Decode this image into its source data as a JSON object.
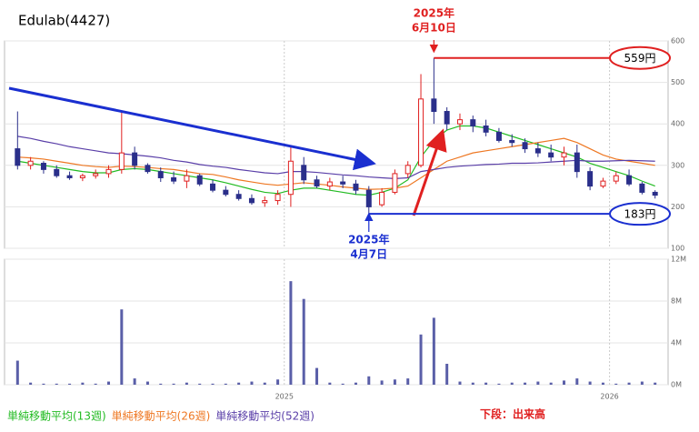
{
  "chart_data": {
    "type": "candlestick",
    "title": "Edulab(4427)",
    "x": [
      2024.18,
      2024.22,
      2024.26,
      2024.3,
      2024.34,
      2024.38,
      2024.42,
      2024.46,
      2024.5,
      2024.54,
      2024.58,
      2024.62,
      2024.66,
      2024.7,
      2024.74,
      2024.78,
      2024.82,
      2024.86,
      2024.9,
      2024.94,
      2024.98,
      2025.02,
      2025.06,
      2025.1,
      2025.14,
      2025.18,
      2025.22,
      2025.26,
      2025.3,
      2025.34,
      2025.38,
      2025.42,
      2025.46,
      2025.5,
      2025.54,
      2025.58,
      2025.62,
      2025.66,
      2025.7,
      2025.74,
      2025.78,
      2025.82,
      2025.86,
      2025.9,
      2025.94,
      2025.98,
      2026.02,
      2026.06,
      2026.1,
      2026.14
    ],
    "open": [
      340,
      300,
      305,
      290,
      275,
      270,
      275,
      280,
      290,
      330,
      300,
      285,
      270,
      262,
      275,
      255,
      240,
      230,
      220,
      210,
      215,
      230,
      300,
      265,
      250,
      260,
      255,
      240,
      205,
      235,
      280,
      300,
      460,
      430,
      400,
      410,
      395,
      380,
      360,
      355,
      340,
      330,
      320,
      330,
      285,
      250,
      262,
      275,
      255,
      235
    ],
    "high": [
      430,
      320,
      310,
      300,
      285,
      280,
      290,
      300,
      430,
      345,
      305,
      295,
      285,
      290,
      280,
      265,
      250,
      240,
      230,
      225,
      240,
      345,
      320,
      275,
      270,
      275,
      265,
      250,
      245,
      290,
      310,
      520,
      559,
      440,
      425,
      420,
      410,
      390,
      375,
      365,
      355,
      350,
      345,
      350,
      295,
      270,
      285,
      290,
      260,
      240
    ],
    "low": [
      290,
      290,
      280,
      270,
      265,
      262,
      268,
      270,
      280,
      290,
      280,
      260,
      255,
      245,
      250,
      235,
      225,
      215,
      205,
      200,
      205,
      200,
      255,
      245,
      240,
      245,
      230,
      183,
      200,
      230,
      270,
      295,
      400,
      385,
      385,
      380,
      370,
      355,
      345,
      330,
      320,
      310,
      300,
      270,
      240,
      245,
      255,
      250,
      230,
      220
    ],
    "close": [
      300,
      310,
      290,
      275,
      270,
      275,
      280,
      290,
      330,
      300,
      285,
      270,
      262,
      275,
      255,
      240,
      230,
      220,
      210,
      215,
      230,
      310,
      265,
      250,
      260,
      255,
      240,
      200,
      235,
      280,
      300,
      460,
      430,
      400,
      410,
      395,
      380,
      360,
      355,
      340,
      330,
      320,
      330,
      285,
      250,
      262,
      275,
      255,
      235,
      228
    ],
    "up_color": "#e02020",
    "down_color": "#2a2f8a",
    "xlim": [
      2024.14,
      2026.18
    ],
    "xticks": [
      2025,
      2026
    ],
    "ylim": [
      100,
      600
    ],
    "yticks": [
      100,
      200,
      300,
      400,
      500,
      600
    ],
    "grid": true,
    "series": [
      {
        "name": "単純移動平均(13週)",
        "color": "#22bb22",
        "values": [
          310,
          305,
          300,
          295,
          290,
          285,
          282,
          282,
          290,
          292,
          290,
          285,
          280,
          275,
          270,
          265,
          258,
          250,
          242,
          235,
          232,
          240,
          245,
          245,
          240,
          235,
          230,
          228,
          235,
          245,
          265,
          320,
          360,
          385,
          395,
          395,
          390,
          380,
          370,
          360,
          350,
          340,
          330,
          320,
          305,
          295,
          285,
          275,
          262,
          250
        ]
      },
      {
        "name": "単純移動平均(26週)",
        "color": "#ee7722",
        "values": [
          320,
          318,
          315,
          310,
          305,
          300,
          297,
          295,
          298,
          297,
          295,
          292,
          290,
          285,
          280,
          278,
          272,
          265,
          260,
          255,
          252,
          255,
          258,
          255,
          252,
          248,
          245,
          242,
          243,
          245,
          250,
          270,
          290,
          310,
          320,
          330,
          335,
          340,
          345,
          350,
          355,
          360,
          365,
          355,
          340,
          325,
          315,
          310,
          305,
          300
        ]
      },
      {
        "name": "単純移動平均(52週)",
        "color": "#5a3fa8",
        "values": [
          370,
          365,
          358,
          352,
          345,
          340,
          335,
          330,
          328,
          325,
          322,
          318,
          312,
          308,
          302,
          298,
          295,
          290,
          286,
          282,
          280,
          285,
          285,
          283,
          280,
          277,
          275,
          272,
          270,
          268,
          270,
          285,
          290,
          295,
          298,
          300,
          302,
          303,
          305,
          305,
          306,
          308,
          310,
          312,
          310,
          310,
          311,
          312,
          311,
          310
        ]
      }
    ],
    "volume": {
      "label": "下段：出来高",
      "color": "#5a5fa8",
      "ylim": [
        0,
        12
      ],
      "yticks": [
        {
          "value": 0,
          "label": "0M"
        },
        {
          "value": 4,
          "label": "4M"
        },
        {
          "value": 8,
          "label": "8M"
        },
        {
          "value": 12,
          "label": "12M"
        }
      ],
      "values": [
        2.3,
        0.2,
        0.1,
        0.1,
        0.1,
        0.2,
        0.1,
        0.3,
        7.2,
        0.6,
        0.3,
        0.1,
        0.1,
        0.2,
        0.1,
        0.1,
        0.1,
        0.2,
        0.3,
        0.2,
        0.5,
        9.9,
        8.2,
        1.6,
        0.2,
        0.1,
        0.2,
        0.8,
        0.4,
        0.5,
        0.6,
        4.8,
        6.4,
        2.0,
        0.3,
        0.2,
        0.2,
        0.1,
        0.2,
        0.2,
        0.3,
        0.2,
        0.4,
        0.6,
        0.3,
        0.2,
        0.1,
        0.2,
        0.3,
        0.2
      ]
    },
    "annotations": {
      "low_date": [
        "2025年",
        "4月7日"
      ],
      "high_date": [
        "2025年",
        "6月10日"
      ]
    },
    "price_levels": [
      {
        "value": 559,
        "label": "559円",
        "color": "#e02020"
      },
      {
        "value": 183,
        "label": "183円",
        "color": "#1a2fd0"
      }
    ]
  }
}
